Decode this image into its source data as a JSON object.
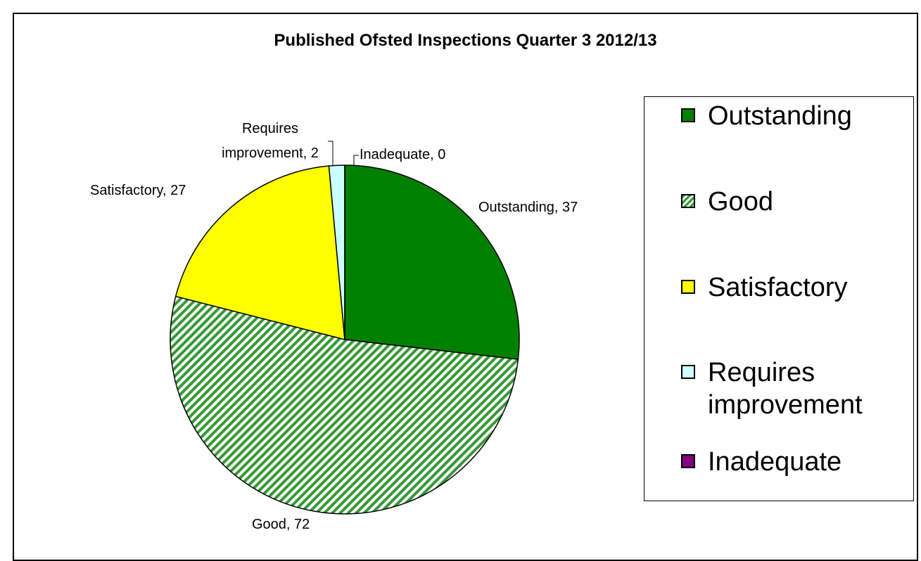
{
  "chart_data": {
    "type": "pie",
    "title": "Published Ofsted Inspections Quarter 3 2012/13",
    "categories": [
      "Outstanding",
      "Good",
      "Satisfactory",
      "Requires improvement",
      "Inadequate"
    ],
    "values": [
      37,
      72,
      27,
      2,
      0
    ],
    "value_labels": [
      "Outstanding, 37",
      "Good, 72",
      "Satisfactory, 27",
      "Requires improvement, 2",
      "Inadequate, 0"
    ],
    "colors": [
      "#008000",
      "#339933",
      "#ffff00",
      "#ccffff",
      "#800080"
    ],
    "hatched": [
      false,
      true,
      false,
      false,
      false
    ],
    "legend": "right"
  }
}
